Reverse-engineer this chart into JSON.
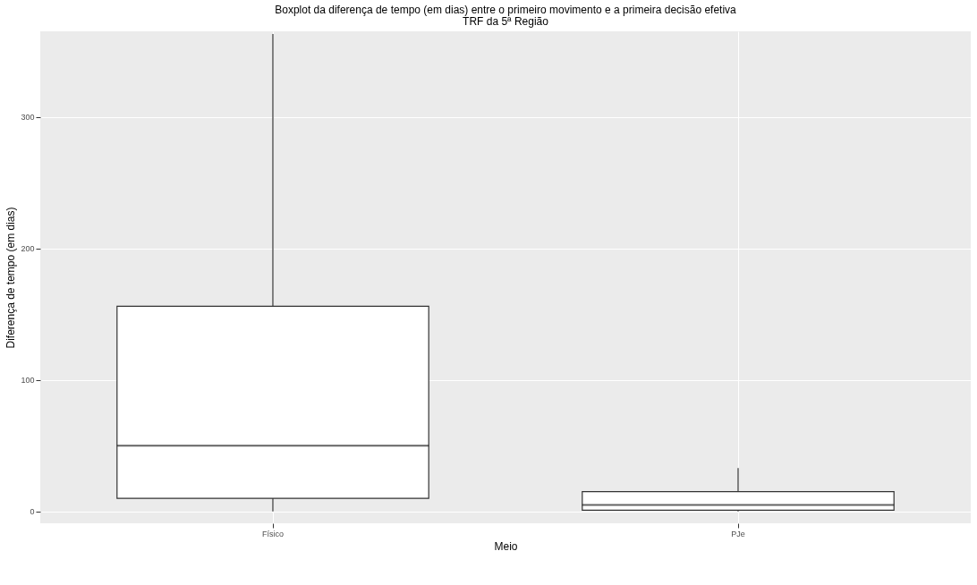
{
  "chart_data": {
    "type": "box",
    "title": "Boxplot da diferença de tempo (em dias) entre o primeiro movimento e a primeira decisão efetiva",
    "subtitle": "TRF da 5ª Região",
    "xlabel": "Meio",
    "ylabel": "Diferença de tempo (em dias)",
    "categories": [
      "Físico",
      "PJe"
    ],
    "boxes": [
      {
        "low": 0,
        "q1": 10,
        "median": 50,
        "q3": 156,
        "high": 363
      },
      {
        "low": 0,
        "q1": 1,
        "median": 5,
        "q3": 15,
        "high": 33
      }
    ],
    "ylim": [
      -9,
      365
    ],
    "yticks": [
      0,
      100,
      200,
      300
    ],
    "grid": true
  }
}
